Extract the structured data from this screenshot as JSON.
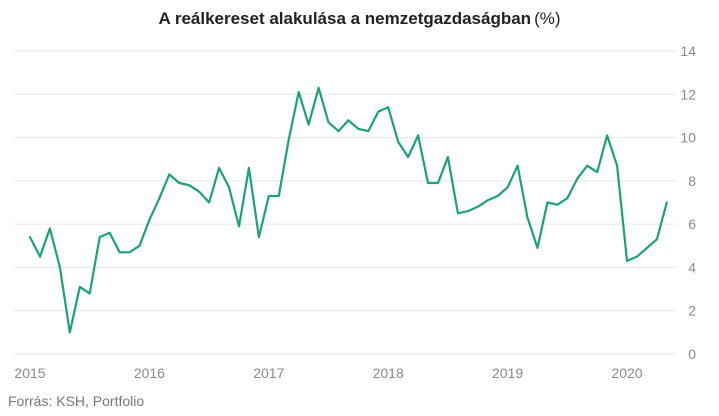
{
  "chart_data": {
    "type": "line",
    "title": "A reálkereset alakulása a nemzetgazdaságban",
    "title_unit": "(%)",
    "xlabel": "",
    "ylabel": "",
    "x_ticks": [
      "2015",
      "2016",
      "2017",
      "2018",
      "2019",
      "2020"
    ],
    "y_ticks": [
      0,
      2,
      4,
      6,
      8,
      10,
      12,
      14
    ],
    "ylim": [
      0,
      14
    ],
    "x_start": "2015-01",
    "grid": true,
    "y_axis_side": "right",
    "line_color": "#1aa37a",
    "grid_color": "#e6e6e6",
    "series": [
      {
        "values": [
          5.4,
          4.5,
          5.8,
          4.0,
          1.0,
          3.1,
          2.8,
          5.4,
          5.6,
          4.7,
          4.7,
          5.0,
          6.2,
          7.2,
          8.3,
          7.9,
          7.8,
          7.5,
          7.0,
          8.6,
          7.7,
          5.9,
          8.6,
          5.4,
          7.3,
          7.3,
          9.9,
          12.1,
          10.6,
          12.3,
          10.7,
          10.3,
          10.8,
          10.4,
          10.3,
          11.2,
          11.4,
          9.8,
          9.1,
          10.1,
          7.9,
          7.9,
          9.1,
          6.5,
          6.6,
          6.8,
          7.1,
          7.3,
          7.7,
          8.7,
          6.3,
          4.9,
          7.0,
          6.9,
          7.2,
          8.1,
          8.7,
          8.4,
          10.1,
          8.7,
          4.3,
          4.5,
          4.9,
          5.3,
          7.0
        ]
      }
    ]
  },
  "source": "Forrás: KSH, Portfolio"
}
